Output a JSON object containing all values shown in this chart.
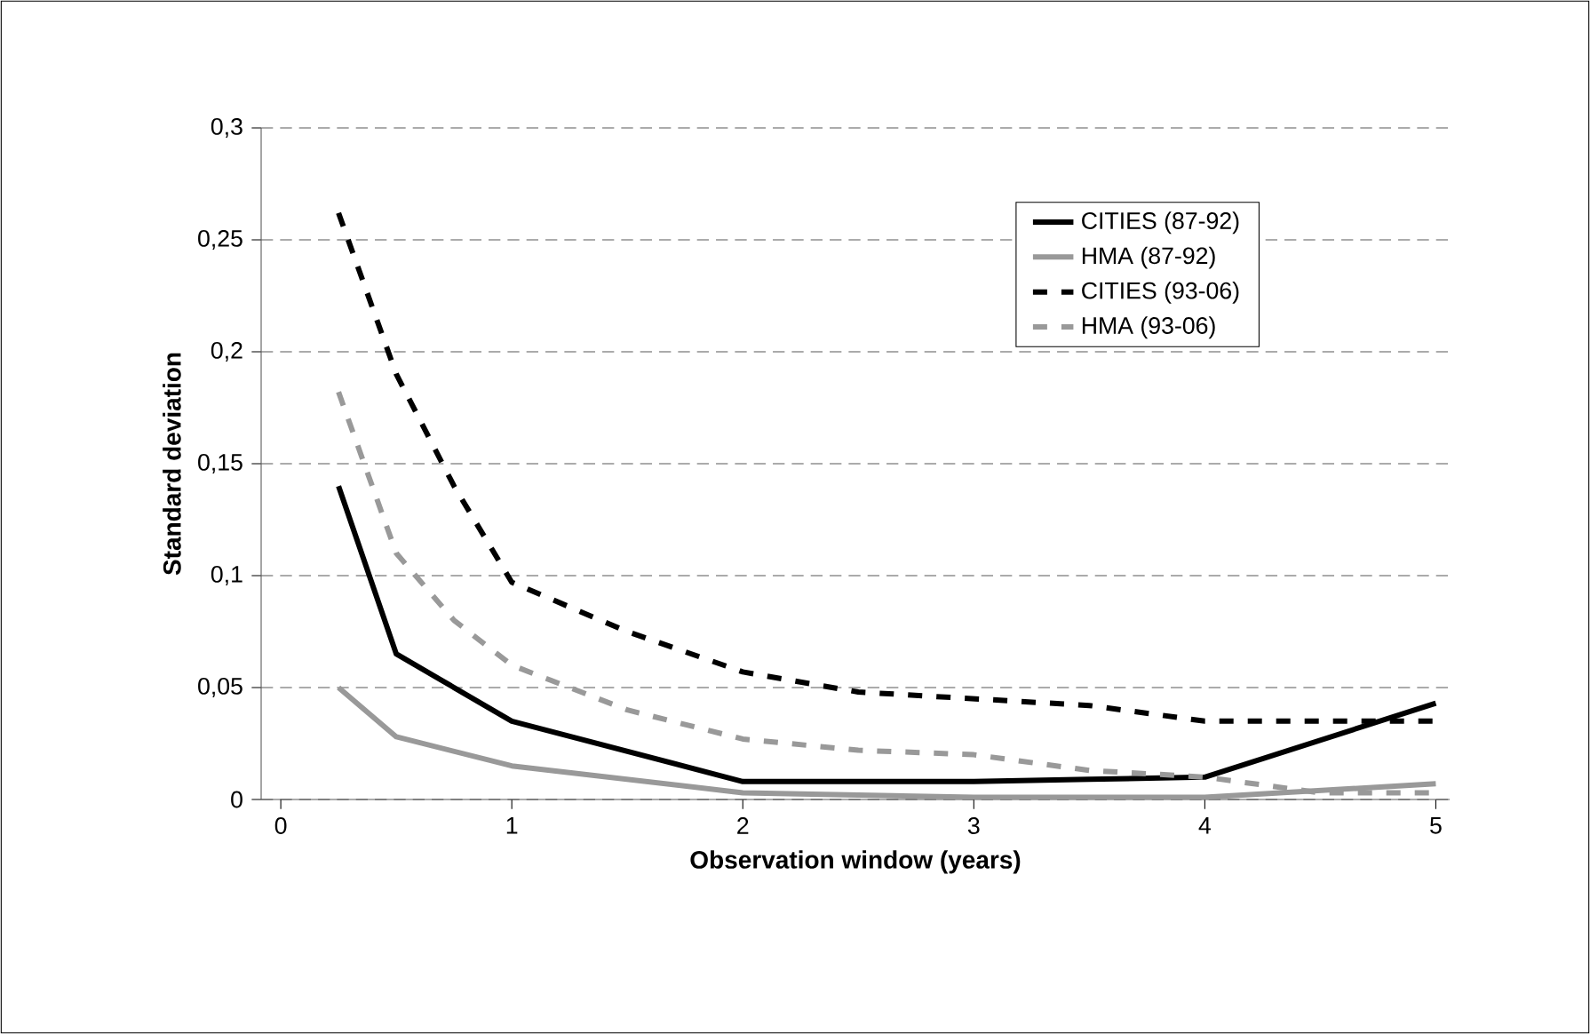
{
  "chart_data": {
    "type": "line",
    "xlabel": "Observation window (years)",
    "ylabel": "Standard deviation",
    "xlim": [
      -0.085,
      5.06
    ],
    "ylim": [
      0,
      0.3
    ],
    "xticks": [
      0,
      1,
      2,
      3,
      4,
      5
    ],
    "yticks": [
      0,
      {
        "value": 0.05,
        "label": "0,05"
      },
      {
        "value": 0.1,
        "label": "0,1"
      },
      {
        "value": 0.15,
        "label": "0,15"
      },
      {
        "value": 0.2,
        "label": "0,2"
      },
      {
        "value": 0.25,
        "label": "0,25"
      },
      {
        "value": 0.3,
        "label": "0,3"
      }
    ],
    "grid": "y",
    "legend": "top right",
    "marker": "none",
    "series": [
      {
        "name": "CITIES (87-92)",
        "color": "#000000",
        "line_style": "solid",
        "x": [
          0.25,
          0.5,
          1,
          2,
          3,
          3.5,
          4,
          5
        ],
        "values": [
          0.14,
          0.065,
          0.035,
          0.008,
          0.008,
          0.009,
          0.01,
          0.043
        ]
      },
      {
        "name": "HMA (87-92)",
        "color": "#999999",
        "line_style": "solid",
        "x": [
          0.25,
          0.5,
          1,
          2,
          3,
          4,
          5
        ],
        "values": [
          0.05,
          0.028,
          0.015,
          0.003,
          0.001,
          0.001,
          0.007
        ]
      },
      {
        "name": "CITIES (93-06)",
        "color": "#000000",
        "line_style": "dashed",
        "x": [
          0.25,
          0.5,
          0.75,
          1,
          1.5,
          2,
          2.5,
          3,
          3.5,
          4,
          4.5,
          5
        ],
        "values": [
          0.262,
          0.19,
          0.14,
          0.097,
          0.075,
          0.057,
          0.048,
          0.045,
          0.042,
          0.035,
          0.035,
          0.035
        ]
      },
      {
        "name": "HMA (93-06)",
        "color": "#999999",
        "line_style": "dashed",
        "x": [
          0.25,
          0.5,
          0.75,
          1,
          1.5,
          2,
          2.5,
          3,
          3.5,
          4,
          4.5,
          5
        ],
        "values": [
          0.182,
          0.11,
          0.08,
          0.06,
          0.04,
          0.027,
          0.022,
          0.02,
          0.013,
          0.01,
          0.003,
          0.003
        ]
      }
    ]
  }
}
